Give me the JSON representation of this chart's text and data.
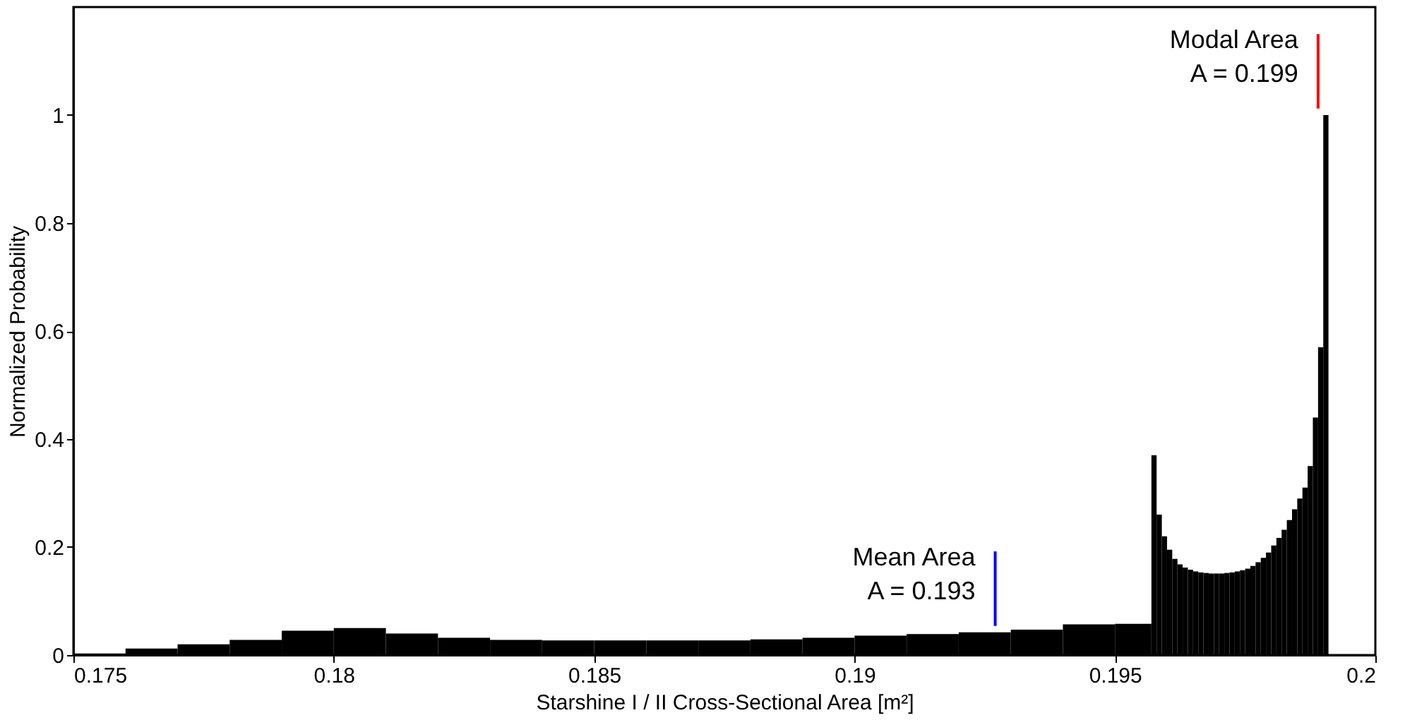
{
  "chart_data": {
    "type": "histogram",
    "xlabel": "Starshine I / II Cross-Sectional Area [m²]",
    "ylabel": "Normalized Probability",
    "bins": [
      0.175,
      0.176,
      0.177,
      0.178,
      0.179,
      0.18,
      0.181,
      0.182,
      0.183,
      0.184,
      0.185,
      0.186,
      0.187,
      0.188,
      0.189,
      0.19,
      0.191,
      0.192,
      0.193,
      0.194,
      0.195,
      0.1957,
      0.1958,
      0.1959,
      0.196,
      0.1961,
      0.1962,
      0.1963,
      0.1964,
      0.1965,
      0.1966,
      0.1967,
      0.1968,
      0.1969,
      0.197,
      0.1971,
      0.1972,
      0.1973,
      0.1974,
      0.1975,
      0.1976,
      0.1977,
      0.1978,
      0.1979,
      0.198,
      0.1981,
      0.1982,
      0.1983,
      0.1984,
      0.1985,
      0.1986,
      0.1987,
      0.1988,
      0.1989,
      0.199,
      0.1991
    ],
    "values": [
      0.003,
      0.012,
      0.02,
      0.028,
      0.045,
      0.05,
      0.04,
      0.032,
      0.028,
      0.027,
      0.027,
      0.027,
      0.027,
      0.029,
      0.032,
      0.036,
      0.039,
      0.042,
      0.047,
      0.057,
      0.058,
      0.37,
      0.26,
      0.22,
      0.195,
      0.178,
      0.168,
      0.162,
      0.158,
      0.155,
      0.153,
      0.152,
      0.151,
      0.151,
      0.151,
      0.152,
      0.153,
      0.155,
      0.157,
      0.16,
      0.165,
      0.172,
      0.18,
      0.19,
      0.203,
      0.217,
      0.232,
      0.25,
      0.27,
      0.29,
      0.31,
      0.35,
      0.44,
      0.57,
      1.0
    ],
    "color": "#000000",
    "xlim": [
      0.175,
      0.2
    ],
    "xticks": [
      0.175,
      0.18,
      0.185,
      0.19,
      0.195,
      0.2
    ],
    "ylim": [
      0,
      1.2
    ],
    "yticks": [
      0,
      0.2,
      0.4,
      0.6,
      0.8,
      1
    ],
    "grid": false,
    "ref_lines": [
      {
        "axis": "x",
        "value": 0.1927,
        "label": "Mean Area\nA = 0.193",
        "color": "#0000ff"
      },
      {
        "axis": "x",
        "value": 0.1989,
        "label": "Modal Area\nA = 0.199",
        "color": "#ff0000"
      }
    ]
  }
}
